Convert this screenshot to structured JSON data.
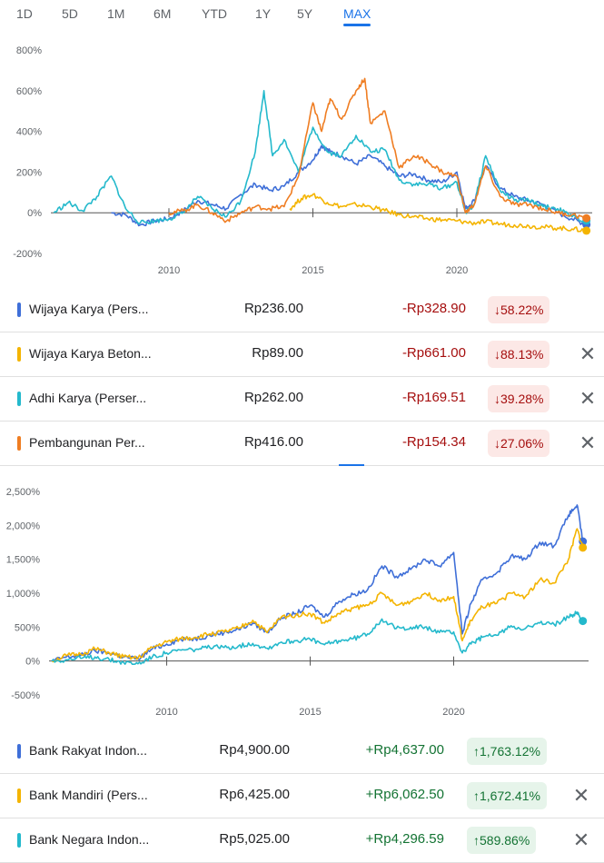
{
  "ranges": [
    "1D",
    "5D",
    "1M",
    "6M",
    "YTD",
    "1Y",
    "5Y",
    "MAX"
  ],
  "active_range": "MAX",
  "colors": {
    "blue": "#3f6fd8",
    "yellow": "#f4b400",
    "cyan": "#24b9cc",
    "orange": "#ef7d22",
    "down": "#a50e0e",
    "up": "#137333",
    "axis": "#5f6368"
  },
  "chart_data": [
    {
      "type": "line",
      "title": "",
      "y_tick_labels": [
        "800%",
        "600%",
        "400%",
        "200%",
        "0%",
        "-200%"
      ],
      "y_ticks": [
        800,
        600,
        400,
        200,
        0,
        -200
      ],
      "ylim": [
        -200,
        800
      ],
      "x_tick_labels": [
        "2010",
        "2015",
        "2020"
      ],
      "x_ticks": [
        2010,
        2015,
        2020
      ],
      "xlim": [
        2005.9,
        2024.7
      ],
      "grid": false,
      "series": [
        {
          "name": "Wijaya Karya (Pers...",
          "color": "blue",
          "x": [
            2008,
            2008.5,
            2009,
            2009.5,
            2010,
            2010.5,
            2011,
            2011.5,
            2012,
            2012.5,
            2013,
            2013.5,
            2014,
            2014.5,
            2015,
            2015.3,
            2015.6,
            2016,
            2016.5,
            2017,
            2017.5,
            2018,
            2018.5,
            2019,
            2019.5,
            2020,
            2020.3,
            2020.6,
            2021,
            2021.5,
            2022,
            2022.5,
            2023,
            2023.5,
            2024,
            2024.5
          ],
          "y": [
            0,
            -10,
            -60,
            -40,
            -30,
            10,
            60,
            40,
            20,
            90,
            140,
            110,
            130,
            200,
            260,
            330,
            300,
            280,
            240,
            280,
            230,
            180,
            190,
            160,
            150,
            200,
            20,
            60,
            230,
            120,
            80,
            60,
            40,
            0,
            -30,
            -58
          ]
        },
        {
          "name": "Wijaya Karya Beton...",
          "color": "yellow",
          "x": [
            2014.2,
            2014.6,
            2015,
            2015.5,
            2016,
            2016.5,
            2017,
            2017.5,
            2018,
            2018.5,
            2019,
            2019.5,
            2020,
            2020.5,
            2021,
            2021.5,
            2022,
            2022.5,
            2023,
            2023.5,
            2024,
            2024.5
          ],
          "y": [
            20,
            70,
            90,
            50,
            30,
            40,
            30,
            10,
            -10,
            -20,
            -30,
            -35,
            -40,
            -50,
            -45,
            -55,
            -60,
            -65,
            -70,
            -75,
            -80,
            -88
          ]
        },
        {
          "name": "Adhi Karya (Perser...",
          "color": "cyan",
          "x": [
            2006,
            2006.5,
            2007,
            2007.5,
            2008,
            2008.5,
            2009,
            2009.5,
            2010,
            2010.5,
            2011,
            2011.5,
            2012,
            2012.5,
            2013,
            2013.3,
            2013.6,
            2014,
            2014.5,
            2015,
            2015.5,
            2016,
            2016.5,
            2017,
            2017.5,
            2018,
            2018.5,
            2019,
            2019.5,
            2020,
            2020.3,
            2020.6,
            2021,
            2021.5,
            2022,
            2022.5,
            2023,
            2023.5,
            2024,
            2024.5
          ],
          "y": [
            0,
            50,
            10,
            80,
            180,
            20,
            -50,
            -40,
            -30,
            0,
            80,
            20,
            -20,
            60,
            300,
            600,
            280,
            360,
            200,
            420,
            300,
            280,
            380,
            300,
            310,
            160,
            140,
            140,
            120,
            150,
            0,
            40,
            280,
            110,
            60,
            60,
            30,
            20,
            -20,
            -39
          ]
        },
        {
          "name": "Pembangunan Per...",
          "color": "orange",
          "x": [
            2010,
            2010.5,
            2011,
            2011.5,
            2012,
            2012.5,
            2013,
            2013.5,
            2014,
            2014.5,
            2015,
            2015.3,
            2015.6,
            2016,
            2016.5,
            2016.8,
            2017,
            2017.5,
            2018,
            2018.5,
            2019,
            2019.5,
            2020,
            2020.3,
            2020.6,
            2021,
            2021.5,
            2022,
            2022.5,
            2023,
            2023.5,
            2024,
            2024.5
          ],
          "y": [
            0,
            10,
            40,
            0,
            -40,
            0,
            30,
            20,
            30,
            180,
            540,
            400,
            560,
            460,
            600,
            660,
            440,
            500,
            220,
            280,
            250,
            200,
            180,
            0,
            40,
            230,
            80,
            40,
            40,
            20,
            0,
            -10,
            -27
          ]
        }
      ]
    },
    {
      "type": "line",
      "title": "",
      "y_tick_labels": [
        "2,500%",
        "2,000%",
        "1,500%",
        "1,000%",
        "500%",
        "0%",
        "-500%"
      ],
      "y_ticks": [
        2500,
        2000,
        1500,
        1000,
        500,
        0,
        -500
      ],
      "ylim": [
        -500,
        2500
      ],
      "x_tick_labels": [
        "2010",
        "2015",
        "2020"
      ],
      "x_ticks": [
        2010,
        2015,
        2020
      ],
      "xlim": [
        2005.9,
        2024.7
      ],
      "grid": false,
      "series": [
        {
          "name": "Bank Rakyat Indon...",
          "color": "blue",
          "x": [
            2006,
            2006.5,
            2007,
            2007.5,
            2008,
            2008.5,
            2009,
            2009.5,
            2010,
            2010.5,
            2011,
            2011.5,
            2012,
            2012.5,
            2013,
            2013.5,
            2014,
            2014.5,
            2015,
            2015.5,
            2016,
            2016.5,
            2017,
            2017.5,
            2018,
            2018.5,
            2019,
            2019.5,
            2020,
            2020.3,
            2020.6,
            2021,
            2021.5,
            2022,
            2022.5,
            2023,
            2023.5,
            2024,
            2024.3,
            2024.5
          ],
          "y": [
            0,
            60,
            80,
            150,
            120,
            60,
            30,
            180,
            250,
            320,
            330,
            380,
            420,
            470,
            560,
            420,
            640,
            700,
            820,
            650,
            880,
            980,
            1050,
            1400,
            1250,
            1350,
            1500,
            1400,
            1600,
            400,
            850,
            1200,
            1300,
            1550,
            1500,
            1750,
            1700,
            2150,
            2300,
            1763
          ]
        },
        {
          "name": "Bank Mandiri (Pers...",
          "color": "yellow",
          "x": [
            2006,
            2006.5,
            2007,
            2007.5,
            2008,
            2008.5,
            2009,
            2009.5,
            2010,
            2010.5,
            2011,
            2011.5,
            2012,
            2012.5,
            2013,
            2013.5,
            2014,
            2014.5,
            2015,
            2015.5,
            2016,
            2016.5,
            2017,
            2017.5,
            2018,
            2018.5,
            2019,
            2019.5,
            2020,
            2020.3,
            2020.6,
            2021,
            2021.5,
            2022,
            2022.5,
            2023,
            2023.5,
            2024,
            2024.3,
            2024.5
          ],
          "y": [
            0,
            80,
            100,
            180,
            120,
            60,
            40,
            200,
            280,
            330,
            350,
            400,
            430,
            480,
            600,
            420,
            650,
            680,
            700,
            560,
            700,
            780,
            820,
            1000,
            820,
            880,
            1000,
            900,
            950,
            300,
            600,
            800,
            850,
            1000,
            950,
            1200,
            1150,
            1500,
            1950,
            1672
          ]
        },
        {
          "name": "Bank Negara Indon...",
          "color": "cyan",
          "x": [
            2006,
            2006.5,
            2007,
            2007.5,
            2008,
            2008.5,
            2009,
            2009.5,
            2010,
            2010.5,
            2011,
            2011.5,
            2012,
            2012.5,
            2013,
            2013.5,
            2014,
            2014.5,
            2015,
            2015.5,
            2016,
            2016.5,
            2017,
            2017.5,
            2018,
            2018.5,
            2019,
            2019.5,
            2020,
            2020.3,
            2020.6,
            2021,
            2021.5,
            2022,
            2022.5,
            2023,
            2023.5,
            2024,
            2024.3,
            2024.5
          ],
          "y": [
            0,
            20,
            40,
            60,
            20,
            -20,
            -40,
            60,
            120,
            160,
            170,
            200,
            200,
            220,
            260,
            190,
            280,
            300,
            320,
            240,
            300,
            330,
            400,
            620,
            480,
            500,
            500,
            420,
            430,
            120,
            250,
            350,
            380,
            520,
            480,
            560,
            540,
            640,
            720,
            590
          ]
        }
      ]
    }
  ],
  "legend_top": [
    {
      "name": "Wijaya Karya (Pers...",
      "price": "Rp236.00",
      "change": "-Rp328.90",
      "pct": "58.22%",
      "arrow": "↓",
      "dir": "down",
      "color": "blue",
      "removable": false
    },
    {
      "name": "Wijaya Karya Beton...",
      "price": "Rp89.00",
      "change": "-Rp661.00",
      "pct": "88.13%",
      "arrow": "↓",
      "dir": "down",
      "color": "yellow",
      "removable": true
    },
    {
      "name": "Adhi Karya (Perser...",
      "price": "Rp262.00",
      "change": "-Rp169.51",
      "pct": "39.28%",
      "arrow": "↓",
      "dir": "down",
      "color": "cyan",
      "removable": true
    },
    {
      "name": "Pembangunan Per...",
      "price": "Rp416.00",
      "change": "-Rp154.34",
      "pct": "27.06%",
      "arrow": "↓",
      "dir": "down",
      "color": "orange",
      "removable": true
    }
  ],
  "legend_bottom": [
    {
      "name": "Bank Rakyat Indon...",
      "price": "Rp4,900.00",
      "change": "+Rp4,637.00",
      "pct": "1,763.12%",
      "arrow": "↑",
      "dir": "up",
      "color": "blue",
      "removable": false
    },
    {
      "name": "Bank Mandiri (Pers...",
      "price": "Rp6,425.00",
      "change": "+Rp6,062.50",
      "pct": "1,672.41%",
      "arrow": "↑",
      "dir": "up",
      "color": "yellow",
      "removable": true
    },
    {
      "name": "Bank Negara Indon...",
      "price": "Rp5,025.00",
      "change": "+Rp4,296.59",
      "pct": "589.86%",
      "arrow": "↑",
      "dir": "up",
      "color": "cyan",
      "removable": true
    }
  ],
  "icons": {
    "close": "close-icon",
    "arrow_down": "arrow-down-icon",
    "arrow_up": "arrow-up-icon"
  },
  "close_glyph": "✕"
}
